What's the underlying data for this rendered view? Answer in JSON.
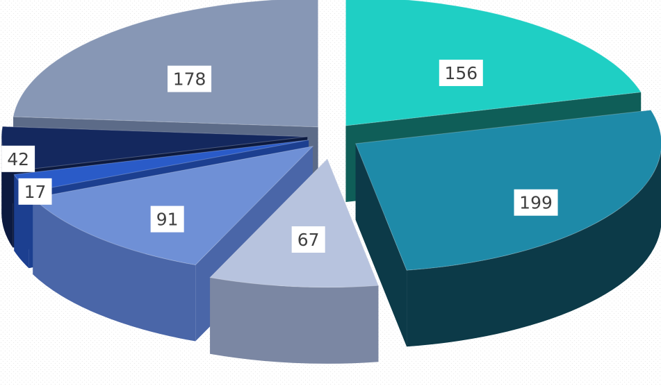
{
  "chart_data": {
    "type": "pie",
    "title": "",
    "style": "3d-exploded",
    "values": [
      156,
      199,
      67,
      91,
      17,
      42,
      178
    ],
    "labels": [
      "156",
      "199",
      "67",
      "91",
      "17",
      "42",
      "178"
    ],
    "colors": [
      "#1fcfc4",
      "#1e8aa8",
      "#b7c3de",
      "#6f90d6",
      "#2a5bc8",
      "#14285e",
      "#8797b5"
    ],
    "side_colors": [
      "#0f5e58",
      "#0c3a48",
      "#7b87a3",
      "#4a66a8",
      "#1c3f90",
      "#0c1a40",
      "#5c6b88"
    ],
    "legend": "none"
  }
}
